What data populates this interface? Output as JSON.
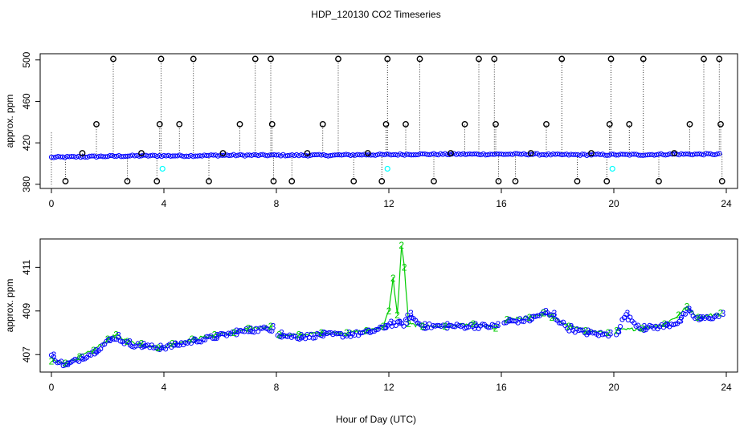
{
  "figure": {
    "title": "HDP_120130  CO2 Timeseries",
    "xlabel": "Hour of Day (UTC)"
  },
  "colors": {
    "baseline": "#0000ff",
    "outlier": "#000000",
    "flagged": "#00ffff",
    "series_2": "#00cc00",
    "series_3": "#0000ff"
  },
  "chart_data": [
    {
      "type": "scatter",
      "panel": "top",
      "ylabel": "approx. ppm",
      "xlim": [
        -0.4,
        24.4
      ],
      "ylim": [
        376,
        506
      ],
      "xticks": [
        0,
        4,
        8,
        12,
        16,
        20,
        24
      ],
      "yticks": [
        380,
        420,
        460,
        500
      ],
      "grid": false,
      "baseline_trace": {
        "x": [
          0,
          1,
          2,
          3,
          4,
          5,
          6,
          7,
          8,
          9,
          10,
          11,
          12,
          13,
          14,
          15,
          16,
          17,
          18,
          19,
          20,
          21,
          22,
          23,
          23.8
        ],
        "y": [
          406,
          406.5,
          407,
          407.5,
          407.5,
          407.5,
          408,
          408,
          408,
          408,
          408,
          408.5,
          408.5,
          409,
          409,
          409,
          409,
          409,
          408.5,
          408.5,
          408.5,
          408.5,
          409,
          409,
          409
        ]
      },
      "outliers": {
        "x": [
          0.5,
          1.1,
          1.6,
          2.2,
          2.7,
          3.2,
          3.75,
          3.85,
          3.9,
          4.55,
          5.05,
          5.6,
          6.1,
          6.7,
          7.25,
          7.8,
          7.85,
          7.9,
          8.55,
          9.1,
          9.65,
          10.2,
          10.75,
          11.25,
          11.75,
          11.9,
          11.95,
          12.6,
          13.1,
          13.6,
          14.2,
          14.7,
          15.2,
          15.75,
          15.8,
          15.9,
          16.5,
          17.05,
          17.6,
          18.15,
          18.7,
          19.2,
          19.75,
          19.85,
          19.9,
          20.55,
          21.05,
          21.6,
          22.15,
          22.7,
          23.2,
          23.75,
          23.8,
          23.85
        ],
        "y": [
          383,
          410,
          438,
          501,
          383,
          410,
          383,
          438,
          501,
          438,
          501,
          383,
          410,
          438,
          501,
          501,
          438,
          383,
          383,
          410,
          438,
          501,
          383,
          410,
          383,
          438,
          501,
          438,
          501,
          383,
          410,
          438,
          501,
          501,
          438,
          383,
          383,
          410,
          438,
          501,
          383,
          410,
          383,
          438,
          501,
          438,
          501,
          383,
          410,
          438,
          501,
          501,
          438,
          383
        ]
      },
      "flagged": {
        "x": [
          3.95,
          11.95,
          19.95
        ],
        "y": [
          395,
          395,
          395
        ]
      }
    },
    {
      "type": "line",
      "panel": "bottom",
      "ylabel": "approx. ppm",
      "xlim": [
        -0.4,
        24.4
      ],
      "ylim": [
        406.2,
        412.3
      ],
      "xticks": [
        0,
        4,
        8,
        12,
        16,
        20,
        24
      ],
      "yticks": [
        407,
        409,
        411
      ],
      "grid": false,
      "series": [
        {
          "name": "2",
          "marker": "2",
          "x": [
            0,
            0.5,
            1,
            1.5,
            2,
            2.3,
            2.7,
            3.2,
            3.8,
            4.3,
            5,
            5.8,
            6.5,
            7,
            7.8,
            8.1,
            8.8,
            9.6,
            10.5,
            11.2,
            11.8,
            12.0,
            12.15,
            12.3,
            12.45,
            12.55,
            12.7,
            13.2,
            14,
            15,
            15.8,
            16.2,
            17,
            17.5,
            17.8,
            18.4,
            19,
            19.8,
            20.1,
            21,
            21.8,
            22.3,
            22.6,
            23,
            23.8
          ],
          "y": [
            406.7,
            406.6,
            406.9,
            407.2,
            407.7,
            407.9,
            407.6,
            407.5,
            407.3,
            407.5,
            407.7,
            407.9,
            408.0,
            408.2,
            408.3,
            407.9,
            407.9,
            408.0,
            408.0,
            408.1,
            408.3,
            409.0,
            410.5,
            408.8,
            412.0,
            411.0,
            408.4,
            408.3,
            408.3,
            408.4,
            408.2,
            408.6,
            408.7,
            408.9,
            408.7,
            408.3,
            408.1,
            408.0,
            408.1,
            408.2,
            408.4,
            408.8,
            409.2,
            408.7,
            408.9
          ]
        },
        {
          "name": "3",
          "marker": "3",
          "x": [
            0,
            0.5,
            1,
            1.5,
            2,
            2.3,
            2.7,
            3.2,
            3.8,
            4.3,
            5,
            5.8,
            6.5,
            7,
            7.8,
            8.1,
            8.8,
            9.6,
            10.5,
            11.2,
            11.8,
            12.0,
            12.3,
            12.55,
            12.7,
            13.2,
            14,
            15,
            15.8,
            16.2,
            17,
            17.5,
            17.8,
            18.4,
            19,
            19.8,
            20.1,
            20.4,
            21,
            21.8,
            22.3,
            22.6,
            23,
            23.8
          ],
          "y": [
            406.9,
            406.5,
            406.8,
            407.1,
            407.6,
            407.8,
            407.5,
            407.4,
            407.3,
            407.4,
            407.6,
            407.8,
            408.0,
            408.1,
            408.2,
            407.9,
            407.8,
            407.9,
            407.9,
            408.0,
            408.2,
            408.4,
            408.4,
            408.4,
            408.8,
            408.3,
            408.3,
            408.3,
            408.3,
            408.5,
            408.6,
            408.9,
            408.8,
            408.2,
            408.0,
            407.9,
            408.0,
            408.8,
            408.2,
            408.3,
            408.5,
            409.0,
            408.6,
            408.8
          ]
        }
      ]
    }
  ]
}
